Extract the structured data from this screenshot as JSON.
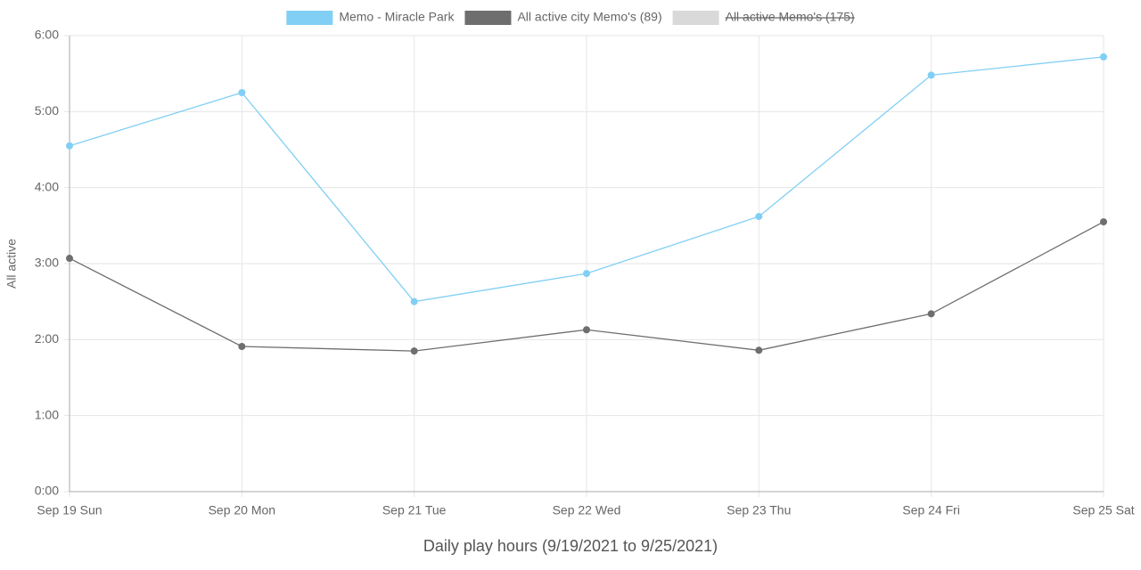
{
  "chart_data": {
    "type": "line",
    "x_label": "Daily play hours (9/19/2021 to 9/25/2021)",
    "y_label": "All active",
    "categories": [
      "Sep 19 Sun",
      "Sep 20 Mon",
      "Sep 21 Tue",
      "Sep 22 Wed",
      "Sep 23 Thu",
      "Sep 24 Fri",
      "Sep 25 Sat"
    ],
    "series": [
      {
        "name": "Memo - Miracle Park",
        "color": "#81cff4",
        "values": [
          4.55,
          5.25,
          2.5,
          2.87,
          3.62,
          5.48,
          5.72
        ]
      },
      {
        "name": "All active city Memo's (89)",
        "color": "#6e6e6e",
        "values": [
          3.07,
          1.91,
          1.85,
          2.13,
          1.86,
          2.34,
          3.55
        ]
      },
      {
        "name": "All active Memo's (175)",
        "color": "#d9d9d9",
        "hidden": true,
        "values": [
          null,
          null,
          null,
          null,
          null,
          null,
          null
        ]
      }
    ],
    "ylim": [
      0,
      6
    ],
    "yticks": [
      {
        "value": 0,
        "label": "0:00"
      },
      {
        "value": 1,
        "label": "1:00"
      },
      {
        "value": 2,
        "label": "2:00"
      },
      {
        "value": 3,
        "label": "3:00"
      },
      {
        "value": 4,
        "label": "4:00"
      },
      {
        "value": 5,
        "label": "5:00"
      },
      {
        "value": 6,
        "label": "6:00"
      }
    ],
    "grid": true,
    "legend": "top"
  }
}
